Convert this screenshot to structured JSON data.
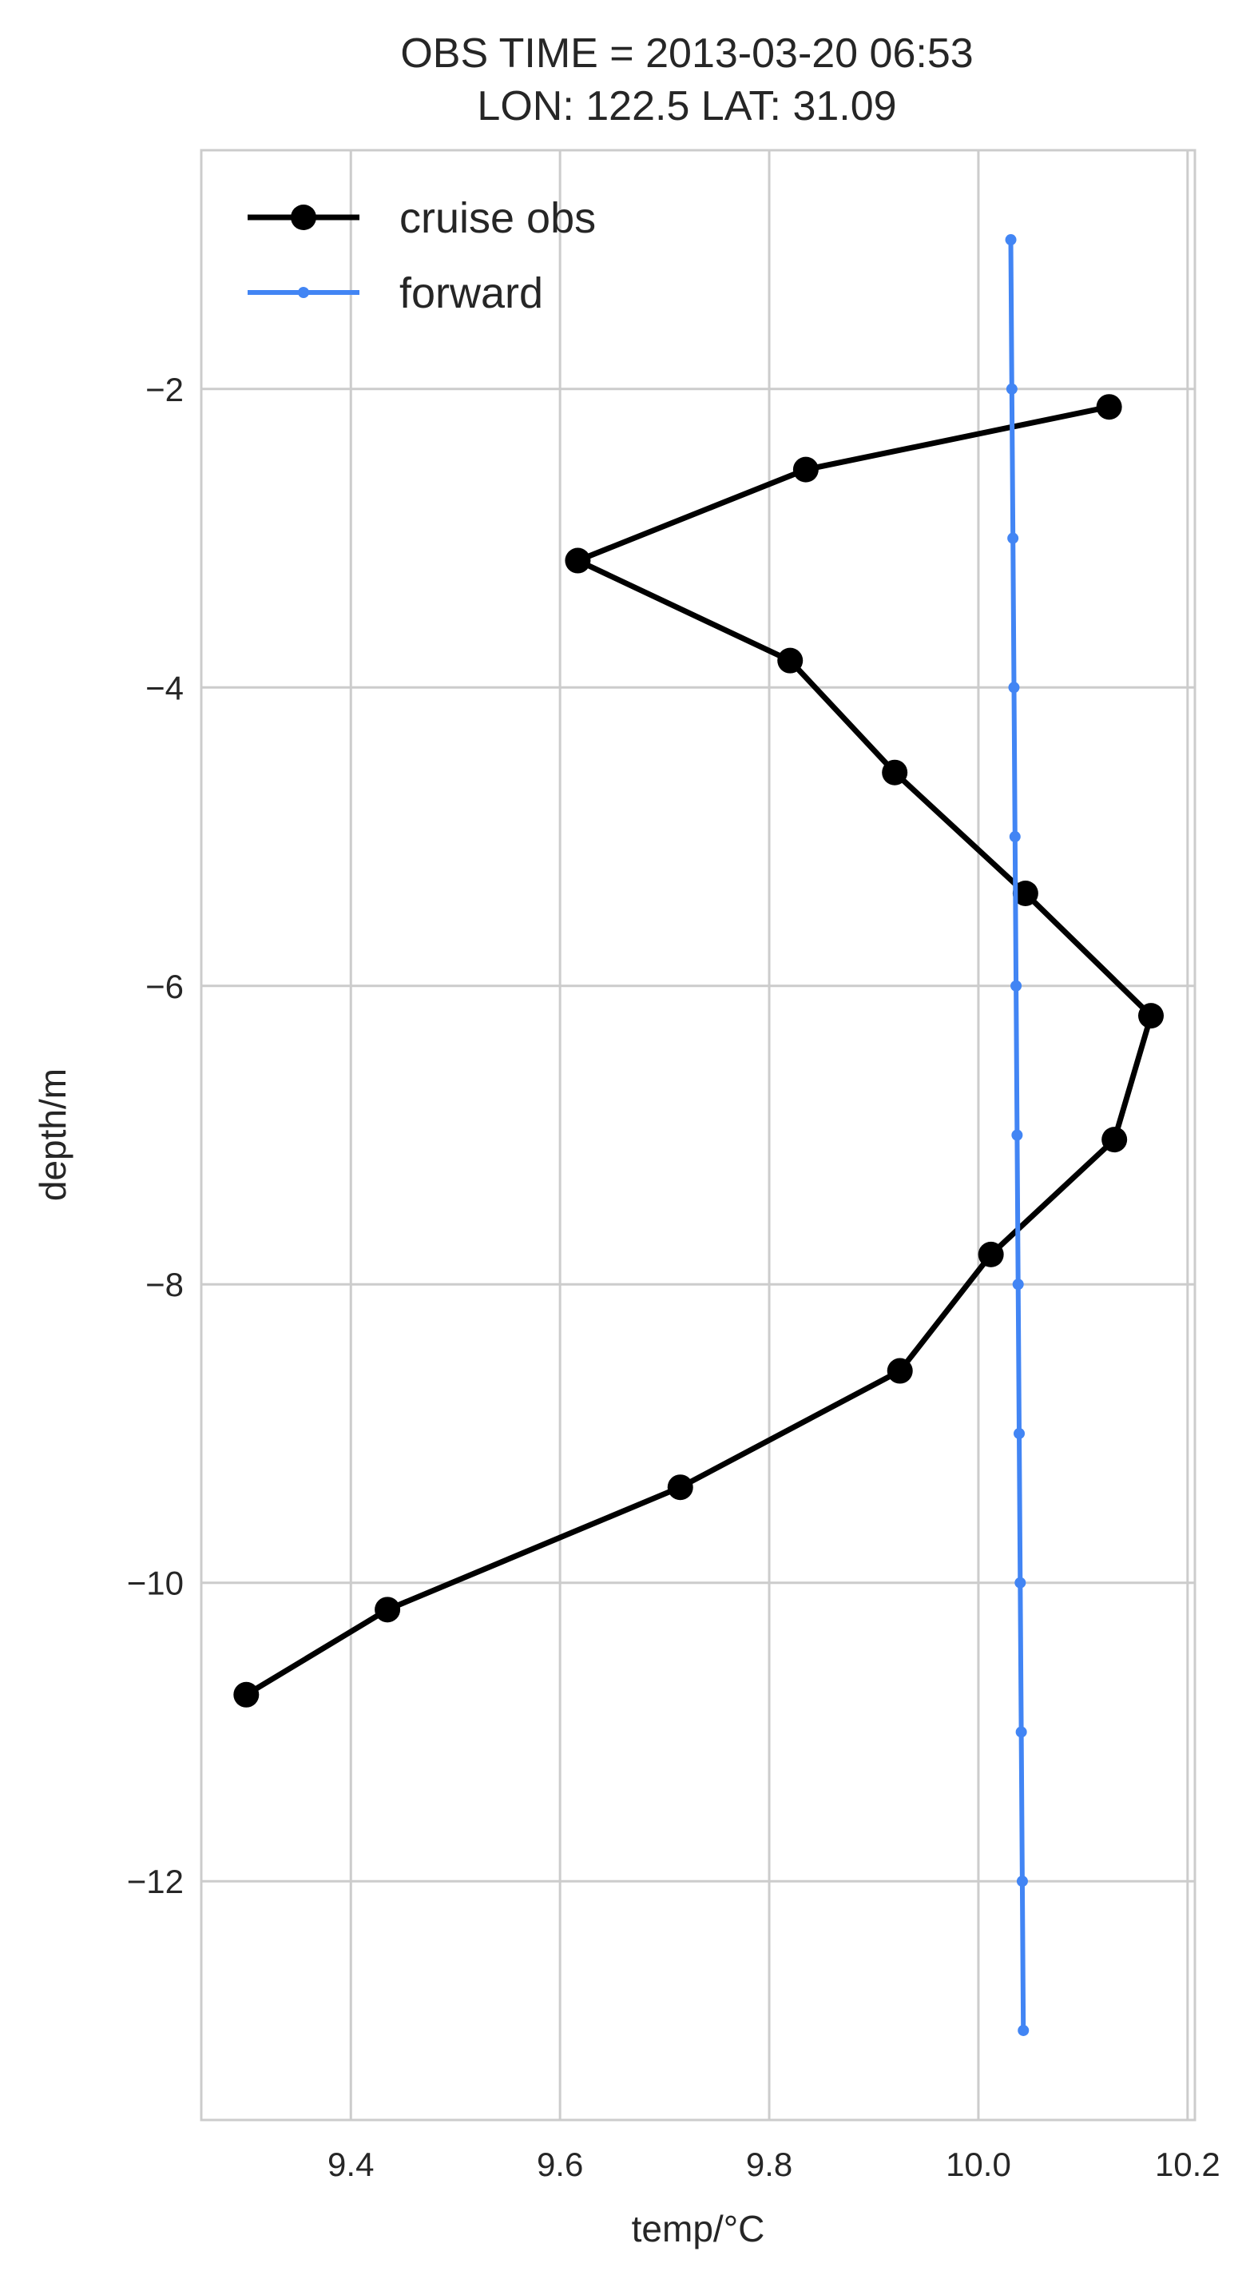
{
  "chart_data": {
    "type": "line",
    "title_line1": "OBS TIME = 2013-03-20 06:53",
    "title_line2": "LON: 122.5 LAT: 31.09",
    "xlabel": "temp/°C",
    "ylabel": "depth/m",
    "xlim": [
      9.257,
      10.207
    ],
    "ylim": [
      -13.6,
      -0.4
    ],
    "grid": true,
    "x_ticks": [
      9.4,
      9.6,
      9.8,
      10.0,
      10.2
    ],
    "x_tick_labels": [
      "9.4",
      "9.6",
      "9.8",
      "10.0",
      "10.2"
    ],
    "y_ticks": [
      -2,
      -4,
      -6,
      -8,
      -10,
      -12
    ],
    "y_tick_labels": [
      "−2",
      "−4",
      "−6",
      "−8",
      "−10",
      "−12"
    ],
    "legend_position": "upper-left",
    "series": [
      {
        "name": "cruise obs",
        "color": "#000000",
        "marker": "large-circle",
        "x": [
          10.125,
          9.835,
          9.617,
          9.82,
          9.92,
          10.045,
          10.165,
          10.13,
          10.012,
          9.925,
          9.715,
          9.435,
          9.3
        ],
        "y": [
          -2.12,
          -2.54,
          -3.15,
          -3.82,
          -4.57,
          -5.38,
          -6.2,
          -7.03,
          -7.8,
          -8.58,
          -9.36,
          -10.18,
          -10.75
        ]
      },
      {
        "name": "forward",
        "color": "#4285F4",
        "marker": "small-circle",
        "x": [
          10.031,
          10.032,
          10.033,
          10.034,
          10.035,
          10.036,
          10.037,
          10.038,
          10.039,
          10.04,
          10.041,
          10.042,
          10.043
        ],
        "y": [
          -1.0,
          -2.0,
          -3.0,
          -4.0,
          -5.0,
          -6.0,
          -7.0,
          -8.0,
          -9.0,
          -10.0,
          -11.0,
          -12.0,
          -13.0
        ]
      }
    ]
  }
}
